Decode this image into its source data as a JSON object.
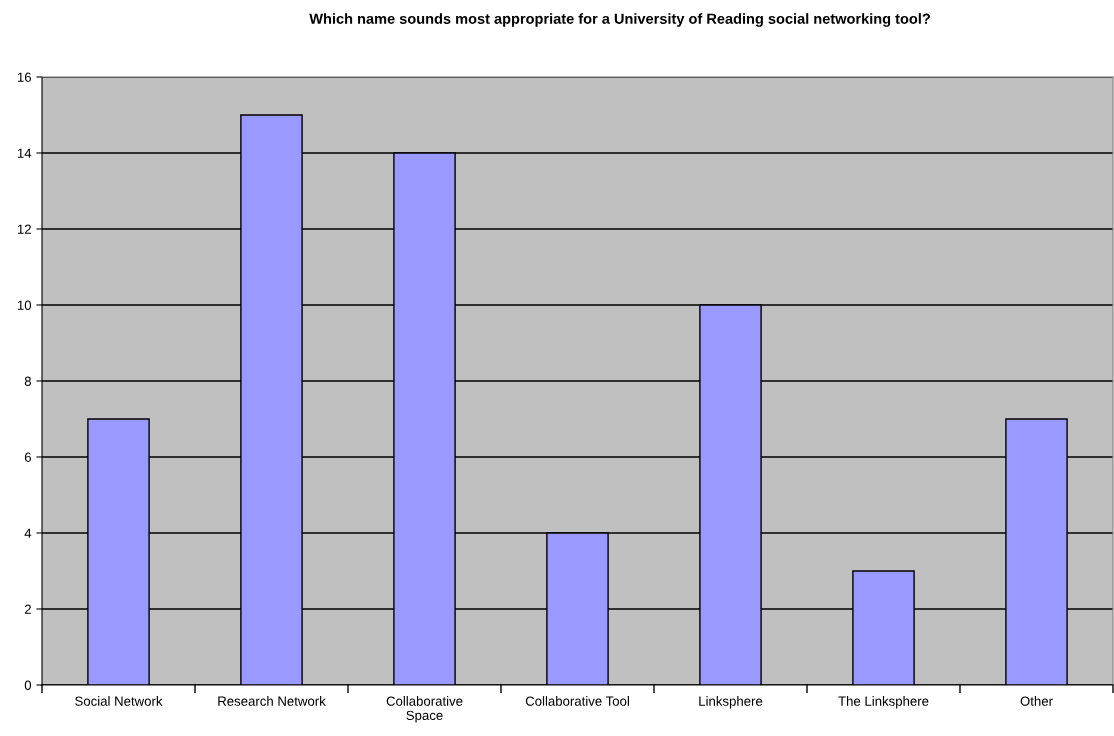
{
  "chart_data": {
    "type": "bar",
    "title": "Which name sounds most appropriate for a University of Reading social networking tool?",
    "categories": [
      "Social Network",
      "Research Network",
      "Collaborative\nSpace",
      "Collaborative Tool",
      "Linksphere",
      "The Linksphere",
      "Other"
    ],
    "values": [
      7,
      15,
      14,
      4,
      10,
      3,
      7
    ],
    "color": "#9999ff",
    "ylim": [
      0,
      16
    ],
    "yticks": [
      0,
      2,
      4,
      6,
      8,
      10,
      12,
      14,
      16
    ],
    "grid": "y",
    "legend": false
  }
}
